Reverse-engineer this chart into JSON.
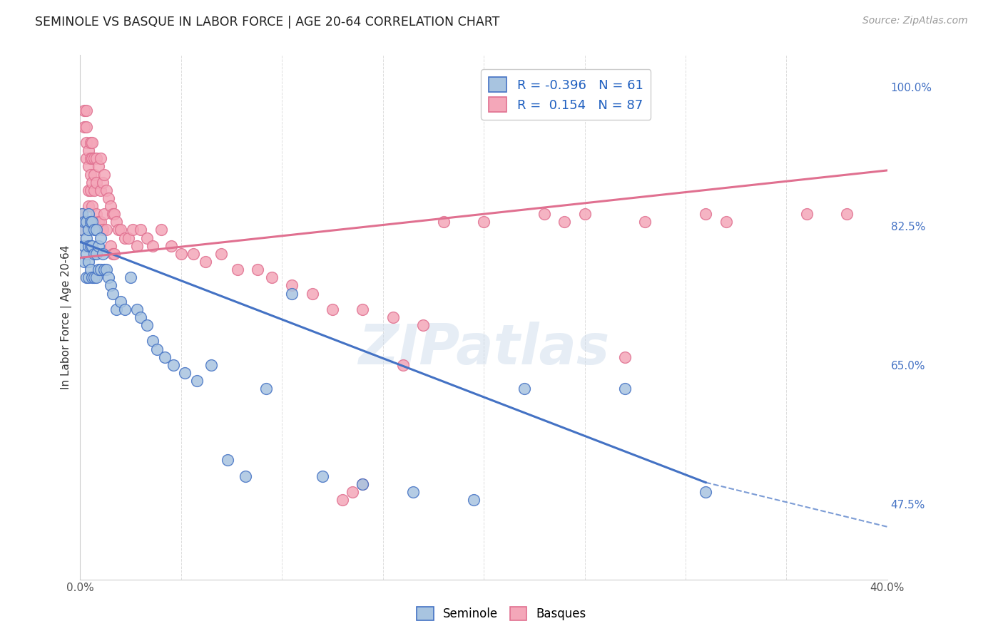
{
  "title": "SEMINOLE VS BASQUE IN LABOR FORCE | AGE 20-64 CORRELATION CHART",
  "source": "Source: ZipAtlas.com",
  "ylabel": "In Labor Force | Age 20-64",
  "ytick_labels": [
    "100.0%",
    "82.5%",
    "65.0%",
    "47.5%"
  ],
  "ytick_values": [
    1.0,
    0.825,
    0.65,
    0.475
  ],
  "xlim": [
    0.0,
    0.4
  ],
  "ylim": [
    0.38,
    1.04
  ],
  "seminole_color": "#a8c4e0",
  "basque_color": "#f4a7b9",
  "seminole_edge_color": "#4472c4",
  "basque_edge_color": "#e07090",
  "seminole_line_color": "#4472c4",
  "basque_line_color": "#e07090",
  "r_seminole": -0.396,
  "n_seminole": 61,
  "r_basque": 0.154,
  "n_basque": 87,
  "legend_r_color": "#2060c0",
  "watermark": "ZIPatlas",
  "seminole_x": [
    0.001,
    0.001,
    0.002,
    0.002,
    0.002,
    0.003,
    0.003,
    0.003,
    0.003,
    0.004,
    0.004,
    0.004,
    0.004,
    0.004,
    0.005,
    0.005,
    0.005,
    0.006,
    0.006,
    0.006,
    0.007,
    0.007,
    0.007,
    0.008,
    0.008,
    0.008,
    0.009,
    0.009,
    0.01,
    0.01,
    0.011,
    0.012,
    0.013,
    0.014,
    0.015,
    0.016,
    0.018,
    0.02,
    0.022,
    0.025,
    0.028,
    0.03,
    0.033,
    0.036,
    0.038,
    0.042,
    0.046,
    0.052,
    0.058,
    0.065,
    0.073,
    0.082,
    0.092,
    0.105,
    0.12,
    0.14,
    0.165,
    0.195,
    0.22,
    0.27,
    0.31
  ],
  "seminole_y": [
    0.84,
    0.82,
    0.83,
    0.8,
    0.78,
    0.83,
    0.81,
    0.79,
    0.76,
    0.84,
    0.82,
    0.8,
    0.78,
    0.76,
    0.83,
    0.8,
    0.77,
    0.83,
    0.8,
    0.76,
    0.82,
    0.79,
    0.76,
    0.82,
    0.79,
    0.76,
    0.8,
    0.77,
    0.81,
    0.77,
    0.79,
    0.77,
    0.77,
    0.76,
    0.75,
    0.74,
    0.72,
    0.73,
    0.72,
    0.76,
    0.72,
    0.71,
    0.7,
    0.68,
    0.67,
    0.66,
    0.65,
    0.64,
    0.63,
    0.65,
    0.53,
    0.51,
    0.62,
    0.74,
    0.51,
    0.5,
    0.49,
    0.48,
    0.62,
    0.62,
    0.49
  ],
  "basque_x": [
    0.001,
    0.001,
    0.001,
    0.002,
    0.002,
    0.002,
    0.003,
    0.003,
    0.003,
    0.003,
    0.004,
    0.004,
    0.004,
    0.004,
    0.005,
    0.005,
    0.005,
    0.005,
    0.006,
    0.006,
    0.006,
    0.006,
    0.007,
    0.007,
    0.007,
    0.007,
    0.008,
    0.008,
    0.008,
    0.009,
    0.009,
    0.01,
    0.01,
    0.01,
    0.011,
    0.011,
    0.012,
    0.012,
    0.013,
    0.013,
    0.014,
    0.015,
    0.015,
    0.016,
    0.016,
    0.017,
    0.017,
    0.018,
    0.019,
    0.02,
    0.022,
    0.024,
    0.026,
    0.028,
    0.03,
    0.033,
    0.036,
    0.04,
    0.045,
    0.05,
    0.056,
    0.062,
    0.07,
    0.078,
    0.088,
    0.095,
    0.105,
    0.115,
    0.125,
    0.14,
    0.155,
    0.17,
    0.2,
    0.24,
    0.28,
    0.32,
    0.36,
    0.38,
    0.31,
    0.27,
    0.25,
    0.23,
    0.18,
    0.16,
    0.14,
    0.135,
    0.13
  ],
  "basque_y": [
    0.84,
    0.83,
    0.82,
    0.97,
    0.95,
    0.83,
    0.97,
    0.95,
    0.93,
    0.91,
    0.92,
    0.9,
    0.87,
    0.85,
    0.93,
    0.91,
    0.89,
    0.87,
    0.93,
    0.91,
    0.88,
    0.85,
    0.91,
    0.89,
    0.87,
    0.83,
    0.91,
    0.88,
    0.84,
    0.9,
    0.83,
    0.91,
    0.87,
    0.83,
    0.88,
    0.82,
    0.89,
    0.84,
    0.87,
    0.82,
    0.86,
    0.85,
    0.8,
    0.84,
    0.79,
    0.84,
    0.79,
    0.83,
    0.82,
    0.82,
    0.81,
    0.81,
    0.82,
    0.8,
    0.82,
    0.81,
    0.8,
    0.82,
    0.8,
    0.79,
    0.79,
    0.78,
    0.79,
    0.77,
    0.77,
    0.76,
    0.75,
    0.74,
    0.72,
    0.72,
    0.71,
    0.7,
    0.83,
    0.83,
    0.83,
    0.83,
    0.84,
    0.84,
    0.84,
    0.66,
    0.84,
    0.84,
    0.83,
    0.65,
    0.5,
    0.49,
    0.48
  ]
}
